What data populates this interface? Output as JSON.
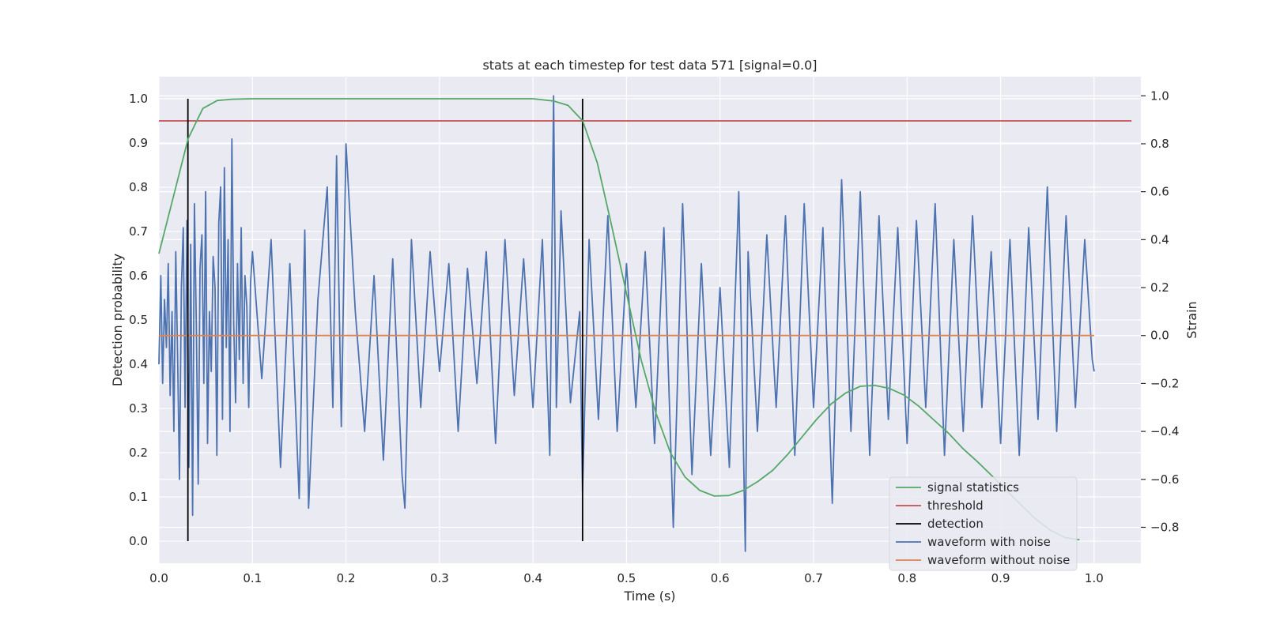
{
  "chart_data": {
    "type": "line",
    "title": "stats at each timestep for test data 571 [signal=0.0]",
    "xlabel": "Time (s)",
    "ylabel": "Detection probability",
    "y2label": "Strain",
    "xlim": [
      0.0,
      1.05
    ],
    "ylim": [
      -0.05,
      1.05
    ],
    "y2lim": [
      -0.95,
      1.08
    ],
    "xticks": [
      "0.0",
      "0.1",
      "0.2",
      "0.3",
      "0.4",
      "0.5",
      "0.6",
      "0.7",
      "0.8",
      "0.9",
      "1.0"
    ],
    "yticks": [
      "0.0",
      "0.1",
      "0.2",
      "0.3",
      "0.4",
      "0.5",
      "0.6",
      "0.7",
      "0.8",
      "0.9",
      "1.0"
    ],
    "y2ticks": [
      "−0.8",
      "−0.6",
      "−0.4",
      "−0.2",
      "0.0",
      "0.2",
      "0.4",
      "0.6",
      "0.8",
      "1.0"
    ],
    "y2tick_values": [
      -0.8,
      -0.6,
      -0.4,
      -0.2,
      0.0,
      0.2,
      0.4,
      0.6,
      0.8,
      1.0
    ],
    "grid": true,
    "legend_placement": "lower-right",
    "colors": {
      "background": "#eaeaf2",
      "grid": "#ffffff",
      "signal_statistics": "#55a868",
      "threshold": "#c44e52",
      "detection": "#000000",
      "waveform_with_noise": "#4c72b0",
      "waveform_without_noise": "#dd8452"
    },
    "series": [
      {
        "name": "signal statistics",
        "axis": "left",
        "x": [
          0.0,
          0.0156,
          0.0313,
          0.0469,
          0.0625,
          0.0781,
          0.1,
          0.2,
          0.3,
          0.4,
          0.4219,
          0.4375,
          0.4531,
          0.4688,
          0.4844,
          0.5,
          0.5156,
          0.5313,
          0.5469,
          0.5625,
          0.5781,
          0.5938,
          0.6094,
          0.625,
          0.6406,
          0.6563,
          0.6719,
          0.6875,
          0.7031,
          0.7188,
          0.7344,
          0.75,
          0.7656,
          0.7813,
          0.7969,
          0.8125,
          0.8281,
          0.8438,
          0.8594,
          0.875,
          0.8906,
          0.9063,
          0.9219,
          0.9375,
          0.9531,
          0.9688,
          0.9844
        ],
        "y": [
          0.65,
          0.78,
          0.91,
          0.978,
          0.996,
          0.999,
          1.0,
          1.0,
          1.0,
          1.0,
          0.995,
          0.985,
          0.95,
          0.855,
          0.71,
          0.56,
          0.41,
          0.29,
          0.2,
          0.145,
          0.115,
          0.102,
          0.103,
          0.115,
          0.135,
          0.16,
          0.195,
          0.235,
          0.275,
          0.31,
          0.335,
          0.35,
          0.352,
          0.345,
          0.33,
          0.305,
          0.275,
          0.245,
          0.21,
          0.18,
          0.148,
          0.115,
          0.082,
          0.05,
          0.025,
          0.008,
          0.003
        ]
      },
      {
        "name": "threshold",
        "axis": "left",
        "x": [
          0.0,
          1.04
        ],
        "y": [
          0.95,
          0.95
        ]
      },
      {
        "name": "detection",
        "axis": "left",
        "x": [
          0.031,
          0.453
        ],
        "y_range": [
          0.0,
          1.0
        ]
      },
      {
        "name": "waveform with noise",
        "axis": "right",
        "x": [
          0.0,
          0.002,
          0.004,
          0.006,
          0.008,
          0.01,
          0.012,
          0.014,
          0.016,
          0.018,
          0.02,
          0.022,
          0.024,
          0.026,
          0.028,
          0.03,
          0.032,
          0.034,
          0.036,
          0.038,
          0.04,
          0.042,
          0.044,
          0.046,
          0.048,
          0.05,
          0.052,
          0.054,
          0.056,
          0.058,
          0.06,
          0.062,
          0.064,
          0.066,
          0.068,
          0.07,
          0.072,
          0.074,
          0.076,
          0.078,
          0.08,
          0.082,
          0.084,
          0.086,
          0.088,
          0.09,
          0.092,
          0.094,
          0.096,
          0.098,
          0.1,
          0.11,
          0.12,
          0.13,
          0.14,
          0.15,
          0.156,
          0.16,
          0.17,
          0.18,
          0.186,
          0.19,
          0.195,
          0.2,
          0.21,
          0.22,
          0.23,
          0.24,
          0.25,
          0.26,
          0.263,
          0.27,
          0.28,
          0.29,
          0.3,
          0.31,
          0.32,
          0.33,
          0.34,
          0.35,
          0.36,
          0.37,
          0.38,
          0.39,
          0.4,
          0.41,
          0.418,
          0.42,
          0.422,
          0.425,
          0.43,
          0.44,
          0.45,
          0.453,
          0.46,
          0.47,
          0.48,
          0.49,
          0.5,
          0.51,
          0.52,
          0.53,
          0.54,
          0.55,
          0.56,
          0.57,
          0.58,
          0.59,
          0.6,
          0.61,
          0.62,
          0.627,
          0.63,
          0.64,
          0.65,
          0.66,
          0.67,
          0.68,
          0.69,
          0.7,
          0.71,
          0.72,
          0.73,
          0.74,
          0.75,
          0.76,
          0.77,
          0.78,
          0.79,
          0.8,
          0.81,
          0.82,
          0.83,
          0.84,
          0.85,
          0.86,
          0.87,
          0.88,
          0.89,
          0.9,
          0.91,
          0.92,
          0.93,
          0.94,
          0.95,
          0.96,
          0.97,
          0.98,
          0.99,
          0.998,
          1.0
        ],
        "y": [
          -0.12,
          0.25,
          -0.2,
          0.15,
          -0.05,
          0.3,
          -0.25,
          0.1,
          -0.4,
          0.35,
          -0.1,
          -0.6,
          0.2,
          0.45,
          -0.3,
          0.48,
          -0.55,
          0.38,
          -0.75,
          0.55,
          0.05,
          -0.62,
          0.28,
          0.42,
          -0.2,
          0.6,
          -0.45,
          0.1,
          -0.15,
          0.33,
          0.2,
          -0.5,
          0.47,
          0.62,
          -0.35,
          0.7,
          -0.05,
          0.4,
          -0.4,
          0.82,
          0.05,
          -0.28,
          0.3,
          -0.1,
          0.45,
          -0.2,
          0.25,
          0.12,
          -0.3,
          0.22,
          0.35,
          -0.18,
          0.4,
          -0.55,
          0.3,
          -0.68,
          0.44,
          -0.72,
          0.15,
          0.62,
          -0.3,
          0.75,
          -0.38,
          0.8,
          0.1,
          -0.4,
          0.25,
          -0.52,
          0.32,
          -0.58,
          -0.72,
          0.4,
          -0.3,
          0.35,
          -0.15,
          0.3,
          -0.4,
          0.28,
          -0.2,
          0.35,
          -0.45,
          0.4,
          -0.25,
          0.32,
          -0.3,
          0.4,
          -0.5,
          0.25,
          1.0,
          -0.3,
          0.52,
          -0.28,
          0.1,
          -0.65,
          0.4,
          -0.35,
          0.5,
          -0.4,
          0.3,
          -0.3,
          0.35,
          -0.45,
          0.45,
          -0.8,
          0.55,
          -0.58,
          0.3,
          -0.5,
          0.2,
          -0.55,
          0.6,
          -0.9,
          0.35,
          -0.4,
          0.42,
          -0.3,
          0.5,
          -0.5,
          0.55,
          -0.3,
          0.45,
          -0.7,
          0.65,
          -0.4,
          0.6,
          -0.5,
          0.5,
          -0.35,
          0.45,
          -0.45,
          0.48,
          -0.3,
          0.55,
          -0.5,
          0.4,
          -0.4,
          0.5,
          -0.3,
          0.35,
          -0.45,
          0.4,
          -0.5,
          0.45,
          -0.35,
          0.62,
          -0.4,
          0.5,
          -0.3,
          0.4,
          -0.1,
          -0.15
        ]
      },
      {
        "name": "waveform without noise",
        "axis": "right",
        "x": [
          0.0,
          1.0
        ],
        "y": [
          0.0,
          0.0
        ]
      }
    ]
  }
}
